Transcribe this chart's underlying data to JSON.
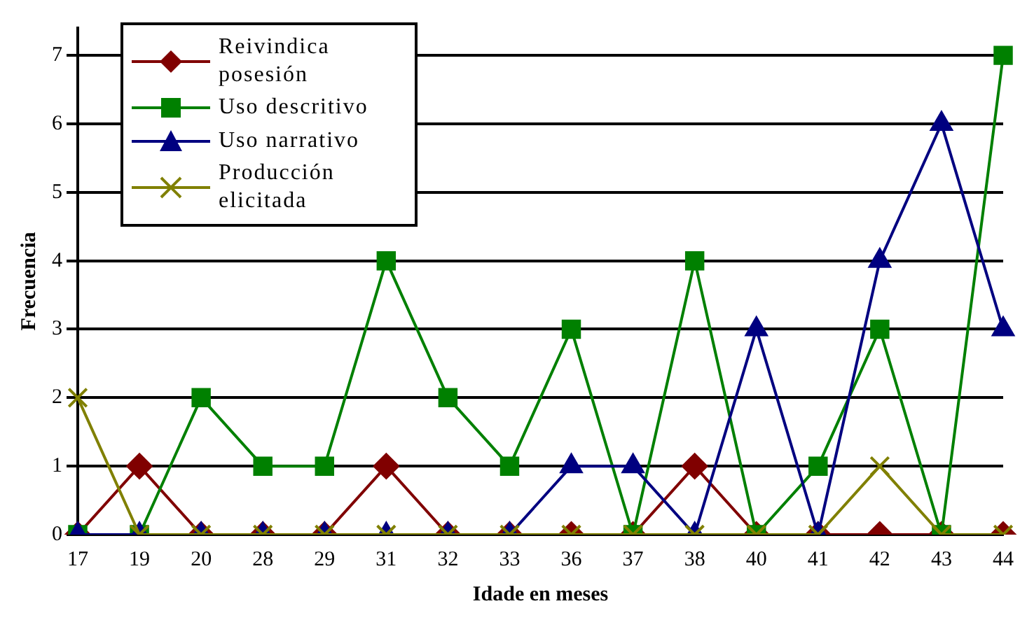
{
  "chart_data": {
    "type": "line",
    "xlabel": "Idade en meses",
    "ylabel": "Frecuencia",
    "categories": [
      "17",
      "19",
      "20",
      "28",
      "29",
      "31",
      "32",
      "33",
      "36",
      "37",
      "38",
      "40",
      "41",
      "42",
      "43",
      "44"
    ],
    "ylim": [
      0,
      7.4
    ],
    "yticks": [
      0,
      1,
      2,
      3,
      4,
      5,
      6,
      7
    ],
    "grid": "y",
    "legend": "top left",
    "series": [
      {
        "name": "Reivindica posesión",
        "color": "#800000",
        "marker": "diamond",
        "values": [
          0,
          1,
          0,
          0,
          0,
          1,
          0,
          0,
          0,
          0,
          1,
          0,
          0,
          0,
          0,
          0
        ]
      },
      {
        "name": "Uso descritivo",
        "color": "#008000",
        "marker": "square",
        "values": [
          0,
          0,
          2,
          1,
          1,
          4,
          2,
          1,
          3,
          0,
          4,
          0,
          1,
          3,
          0,
          7
        ]
      },
      {
        "name": "Uso narrativo",
        "color": "#000080",
        "marker": "triangle",
        "values": [
          0,
          0,
          0,
          0,
          0,
          0,
          0,
          0,
          1,
          1,
          0,
          3,
          0,
          4,
          6,
          3
        ]
      },
      {
        "name": "Producción elicitada",
        "color": "#808000",
        "marker": "cross",
        "values": [
          2,
          0,
          0,
          0,
          0,
          0,
          0,
          0,
          0,
          0,
          0,
          0,
          0,
          1,
          0,
          0
        ]
      }
    ]
  }
}
